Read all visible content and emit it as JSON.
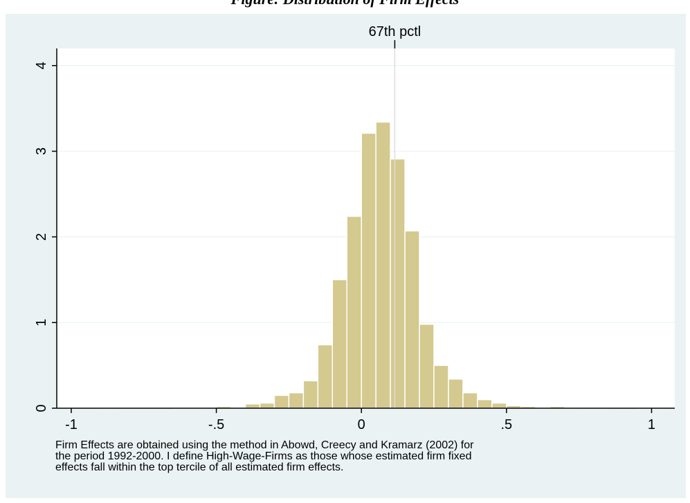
{
  "header": {
    "title_partial": "Figure: Distribution of Firm Effects"
  },
  "chart_data": {
    "type": "bar",
    "subtype": "histogram",
    "bin_width": 0.05,
    "bins": [
      {
        "x0": -1.05,
        "x1": -1.0,
        "y": 0.0
      },
      {
        "x0": -1.0,
        "x1": -0.95,
        "y": 0.0
      },
      {
        "x0": -0.95,
        "x1": -0.9,
        "y": 0.0
      },
      {
        "x0": -0.9,
        "x1": -0.85,
        "y": 0.01
      },
      {
        "x0": -0.85,
        "x1": -0.8,
        "y": 0.0
      },
      {
        "x0": -0.8,
        "x1": -0.75,
        "y": 0.0
      },
      {
        "x0": -0.75,
        "x1": -0.7,
        "y": 0.0
      },
      {
        "x0": -0.7,
        "x1": -0.65,
        "y": 0.0
      },
      {
        "x0": -0.65,
        "x1": -0.6,
        "y": 0.005
      },
      {
        "x0": -0.6,
        "x1": -0.55,
        "y": 0.005
      },
      {
        "x0": -0.55,
        "x1": -0.5,
        "y": 0.01
      },
      {
        "x0": -0.5,
        "x1": -0.45,
        "y": 0.02
      },
      {
        "x0": -0.45,
        "x1": -0.4,
        "y": 0.01
      },
      {
        "x0": -0.4,
        "x1": -0.35,
        "y": 0.05
      },
      {
        "x0": -0.35,
        "x1": -0.3,
        "y": 0.06
      },
      {
        "x0": -0.3,
        "x1": -0.25,
        "y": 0.15
      },
      {
        "x0": -0.25,
        "x1": -0.2,
        "y": 0.18
      },
      {
        "x0": -0.2,
        "x1": -0.15,
        "y": 0.32
      },
      {
        "x0": -0.15,
        "x1": -0.1,
        "y": 0.74
      },
      {
        "x0": -0.1,
        "x1": -0.05,
        "y": 1.5
      },
      {
        "x0": -0.05,
        "x1": 0.0,
        "y": 2.24
      },
      {
        "x0": 0.0,
        "x1": 0.05,
        "y": 3.21
      },
      {
        "x0": 0.05,
        "x1": 0.1,
        "y": 3.34
      },
      {
        "x0": 0.1,
        "x1": 0.15,
        "y": 2.91
      },
      {
        "x0": 0.15,
        "x1": 0.2,
        "y": 2.07
      },
      {
        "x0": 0.2,
        "x1": 0.25,
        "y": 0.98
      },
      {
        "x0": 0.25,
        "x1": 0.3,
        "y": 0.5
      },
      {
        "x0": 0.3,
        "x1": 0.35,
        "y": 0.34
      },
      {
        "x0": 0.35,
        "x1": 0.4,
        "y": 0.18
      },
      {
        "x0": 0.4,
        "x1": 0.45,
        "y": 0.1
      },
      {
        "x0": 0.45,
        "x1": 0.5,
        "y": 0.06
      },
      {
        "x0": 0.5,
        "x1": 0.55,
        "y": 0.03
      },
      {
        "x0": 0.55,
        "x1": 0.6,
        "y": 0.02
      },
      {
        "x0": 0.6,
        "x1": 0.65,
        "y": 0.005
      },
      {
        "x0": 0.65,
        "x1": 0.7,
        "y": 0.02
      },
      {
        "x0": 0.7,
        "x1": 0.75,
        "y": 0.005
      },
      {
        "x0": 0.75,
        "x1": 0.8,
        "y": 0.01
      },
      {
        "x0": 0.8,
        "x1": 0.85,
        "y": 0.01
      },
      {
        "x0": 0.85,
        "x1": 0.9,
        "y": 0.0
      },
      {
        "x0": 0.9,
        "x1": 0.95,
        "y": 0.0
      },
      {
        "x0": 0.95,
        "x1": 1.0,
        "y": 0.005
      },
      {
        "x0": 1.0,
        "x1": 1.05,
        "y": 0.01
      }
    ],
    "xlim": [
      -1.05,
      1.08
    ],
    "ylim": [
      0,
      4.2
    ],
    "xticks": [
      {
        "value": -1,
        "label": "-1"
      },
      {
        "value": -0.5,
        "label": "-.5"
      },
      {
        "value": 0,
        "label": "0"
      },
      {
        "value": 0.5,
        "label": ".5"
      },
      {
        "value": 1,
        "label": "1"
      }
    ],
    "yticks": [
      {
        "value": 0,
        "label": "0"
      },
      {
        "value": 1,
        "label": "1"
      },
      {
        "value": 2,
        "label": "2"
      },
      {
        "value": 3,
        "label": "3"
      },
      {
        "value": 4,
        "label": "4"
      }
    ],
    "reference_line": {
      "x": 0.115,
      "label": "67th pctl"
    },
    "grid": "horizontal",
    "colors": {
      "bar_fill": "#d4c98f",
      "bar_edge": "#ffffff",
      "grid": "#eaf2f3",
      "background_outer": "#eaf2f3",
      "plot_bg": "#ffffff",
      "axis": "#000000",
      "reference_line": "#dddddd"
    }
  },
  "note": {
    "line1": "Firm Effects are obtained using the method in Abowd, Creecy and Kramarz (2002) for",
    "line2": "the period 1992-2000. I define High-Wage-Firms as those whose estimated firm fixed",
    "line3": "effects fall within the top tercile of all estimated firm effects."
  }
}
